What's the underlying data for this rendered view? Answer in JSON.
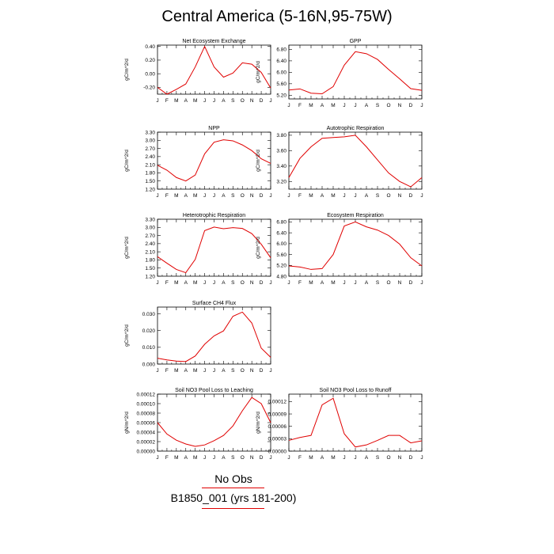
{
  "page_title": "Central America (5-16N,95-75W)",
  "legend": {
    "entries": [
      {
        "label": "No Obs",
        "color": "#e00000"
      },
      {
        "label": "B1850_001 (yrs 181-200)",
        "color": "#e00000"
      }
    ]
  },
  "line_color": "#e00000",
  "chart_data": [
    {
      "type": "line",
      "title": "Net Ecosystem Exchange",
      "ylabel": "gC/m^2/d",
      "xticks": [
        "J",
        "F",
        "M",
        "A",
        "M",
        "J",
        "J",
        "A",
        "S",
        "O",
        "N",
        "D",
        "J"
      ],
      "yticks": [
        "0.40",
        "0.20",
        "0.00",
        "-0.20"
      ],
      "ytick_values": [
        0.4,
        0.2,
        0.0,
        -0.2
      ],
      "ylim": [
        -0.3,
        0.42
      ],
      "series": [
        {
          "values": [
            -0.2,
            -0.3,
            -0.23,
            -0.15,
            0.1,
            0.4,
            0.1,
            -0.05,
            0.01,
            0.16,
            0.14,
            0.02,
            -0.21
          ]
        }
      ]
    },
    {
      "type": "line",
      "title": "GPP",
      "ylabel": "gC/m^2/d",
      "xticks": [
        "J",
        "F",
        "M",
        "A",
        "M",
        "J",
        "J",
        "A",
        "S",
        "O",
        "N",
        "D",
        "J"
      ],
      "yticks": [
        "6.80",
        "6.40",
        "6.00",
        "5.60",
        "5.20"
      ],
      "ytick_values": [
        6.8,
        6.4,
        6.0,
        5.6,
        5.2
      ],
      "ylim": [
        5.07,
        6.95
      ],
      "series": [
        {
          "values": [
            5.38,
            5.42,
            5.27,
            5.25,
            5.5,
            6.25,
            6.72,
            6.65,
            6.45,
            6.1,
            5.77,
            5.43,
            5.37
          ]
        }
      ]
    },
    {
      "type": "line",
      "title": "NPP",
      "ylabel": "gC/m^2/d",
      "xticks": [
        "J",
        "F",
        "M",
        "A",
        "M",
        "J",
        "J",
        "A",
        "S",
        "O",
        "N",
        "D",
        "J"
      ],
      "yticks": [
        "3.30",
        "3.00",
        "2.70",
        "2.40",
        "2.10",
        "1.80",
        "1.50",
        "1.20"
      ],
      "ytick_values": [
        3.3,
        3.0,
        2.7,
        2.4,
        2.1,
        1.8,
        1.5,
        1.2
      ],
      "ylim": [
        1.2,
        3.3
      ],
      "series": [
        {
          "values": [
            2.08,
            1.9,
            1.63,
            1.5,
            1.72,
            2.5,
            2.93,
            3.02,
            2.98,
            2.83,
            2.62,
            2.32,
            2.15
          ]
        }
      ]
    },
    {
      "type": "line",
      "title": "Autotrophic Respiration",
      "ylabel": "gC/m^2/d",
      "xticks": [
        "J",
        "F",
        "M",
        "A",
        "M",
        "J",
        "J",
        "A",
        "S",
        "O",
        "N",
        "D",
        "J"
      ],
      "yticks": [
        "3.80",
        "3.60",
        "3.40",
        "3.20"
      ],
      "ytick_values": [
        3.8,
        3.6,
        3.4,
        3.2
      ],
      "ylim": [
        3.1,
        3.84
      ],
      "series": [
        {
          "values": [
            3.25,
            3.5,
            3.65,
            3.76,
            3.77,
            3.78,
            3.8,
            3.65,
            3.48,
            3.31,
            3.2,
            3.13,
            3.25
          ]
        }
      ]
    },
    {
      "type": "line",
      "title": "Heterotrophic Respiration",
      "ylabel": "gC/m^2/d",
      "xticks": [
        "J",
        "F",
        "M",
        "A",
        "M",
        "J",
        "J",
        "A",
        "S",
        "O",
        "N",
        "D",
        "J"
      ],
      "yticks": [
        "3.30",
        "3.00",
        "2.70",
        "2.40",
        "2.10",
        "1.80",
        "1.50",
        "1.20"
      ],
      "ytick_values": [
        3.3,
        3.0,
        2.7,
        2.4,
        2.1,
        1.8,
        1.5,
        1.2
      ],
      "ylim": [
        1.2,
        3.3
      ],
      "series": [
        {
          "values": [
            1.92,
            1.68,
            1.45,
            1.33,
            1.82,
            2.88,
            3.01,
            2.95,
            2.99,
            2.96,
            2.77,
            2.38,
            1.88
          ]
        }
      ]
    },
    {
      "type": "line",
      "title": "Ecosystem Respiration",
      "ylabel": "gC/m^2/d",
      "xticks": [
        "J",
        "F",
        "M",
        "A",
        "M",
        "J",
        "J",
        "A",
        "S",
        "O",
        "N",
        "D",
        "J"
      ],
      "yticks": [
        "6.80",
        "6.40",
        "6.00",
        "5.60",
        "5.20",
        "4.80"
      ],
      "ytick_values": [
        6.8,
        6.4,
        6.0,
        5.6,
        5.2,
        4.8
      ],
      "ylim": [
        4.8,
        6.9
      ],
      "series": [
        {
          "values": [
            5.18,
            5.14,
            5.05,
            5.08,
            5.6,
            6.65,
            6.8,
            6.62,
            6.5,
            6.3,
            5.98,
            5.48,
            5.18
          ]
        }
      ]
    },
    {
      "type": "line",
      "title": "Surface CH4 Flux",
      "ylabel": "gC/m^2/d",
      "xticks": [
        "J",
        "F",
        "M",
        "A",
        "M",
        "J",
        "J",
        "A",
        "S",
        "O",
        "N",
        "D",
        "J"
      ],
      "yticks": [
        "0.030",
        "0.020",
        "0.010",
        "0.000"
      ],
      "ytick_values": [
        0.03,
        0.02,
        0.01,
        0.0
      ],
      "ylim": [
        0,
        0.034
      ],
      "series": [
        {
          "values": [
            0.0035,
            0.0025,
            0.0018,
            0.0015,
            0.0048,
            0.0118,
            0.0168,
            0.0198,
            0.0285,
            0.031,
            0.0245,
            0.0095,
            0.004
          ]
        }
      ]
    },
    {
      "type": "line",
      "title": "Soil NO3 Pool Loss to Leaching",
      "ylabel": "gN/m^2/d",
      "xticks": [
        "J",
        "F",
        "M",
        "A",
        "M",
        "J",
        "J",
        "A",
        "S",
        "O",
        "N",
        "D",
        "J"
      ],
      "yticks": [
        "0.00012",
        "0.00010",
        "0.00008",
        "0.00006",
        "0.00004",
        "0.00002",
        "0.00000"
      ],
      "ytick_values": [
        0.00012,
        0.0001,
        8e-05,
        6e-05,
        4e-05,
        2e-05,
        0.0
      ],
      "ylim": [
        0,
        0.00012
      ],
      "series": [
        {
          "values": [
            6e-05,
            3.6e-05,
            2.3e-05,
            1.5e-05,
            1e-05,
            1.3e-05,
            2.2e-05,
            3.3e-05,
            5.3e-05,
            8.5e-05,
            0.000113,
            0.0001,
            6e-05
          ]
        }
      ]
    },
    {
      "type": "line",
      "title": "Soil NO3 Pool Loss to Runoff",
      "ylabel": "gN/m^2/d",
      "xticks": [
        "J",
        "F",
        "M",
        "A",
        "M",
        "J",
        "J",
        "A",
        "S",
        "O",
        "N",
        "D",
        "J"
      ],
      "yticks": [
        "0.00012",
        "0.00009",
        "0.00006",
        "0.00003",
        "0.00000"
      ],
      "ytick_values": [
        0.00012,
        9e-05,
        6e-05,
        3e-05,
        0.0
      ],
      "ylim": [
        0,
        0.000138
      ],
      "series": [
        {
          "values": [
            2.6e-05,
            3.3e-05,
            3.8e-05,
            0.000112,
            0.000128,
            4.2e-05,
            1e-05,
            1.5e-05,
            2.6e-05,
            3.8e-05,
            3.8e-05,
            2e-05,
            2.5e-05
          ]
        }
      ]
    }
  ]
}
